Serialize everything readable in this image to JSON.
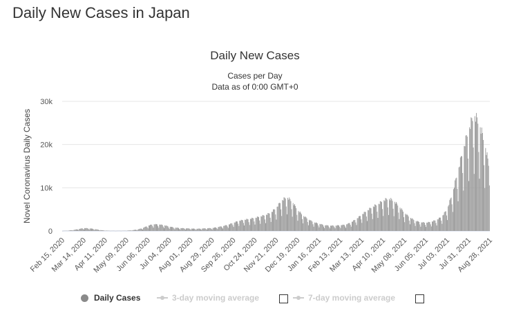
{
  "page": {
    "title": "Daily New Cases in Japan"
  },
  "chart_data": {
    "type": "bar",
    "title": "Daily New Cases",
    "subtitle_lines": [
      "Cases per Day",
      "Data as of 0:00 GMT+0"
    ],
    "ylabel": "Novel Coronavirus Daily Cases",
    "ylim": [
      0,
      30000
    ],
    "yticks": [
      0,
      10000,
      20000,
      30000
    ],
    "ytick_labels": [
      "0",
      "10k",
      "20k",
      "30k"
    ],
    "grid": true,
    "x_start": "2020-02-15",
    "xtick_labels": [
      "Feb 15, 2020",
      "Mar 14, 2020",
      "Apr 11, 2020",
      "May 09, 2020",
      "Jun 06, 2020",
      "Jul 04, 2020",
      "Aug 01, 2020",
      "Aug 29, 2020",
      "Sep 26, 2020",
      "Oct 24, 2020",
      "Nov 21, 2020",
      "Dec 19, 2020",
      "Jan 16, 2021",
      "Feb 13, 2021",
      "Mar 13, 2021",
      "Apr 10, 2021",
      "May 08, 2021",
      "Jun 05, 2021",
      "Jul 03, 2021",
      "Jul 31, 2021",
      "Aug 28, 2021"
    ],
    "series": [
      {
        "name": "Daily Cases",
        "color": "#999999",
        "weekly_values": [
          20,
          60,
          200,
          400,
          600,
          550,
          400,
          200,
          80,
          40,
          30,
          40,
          60,
          150,
          300,
          600,
          1100,
          1400,
          1350,
          1200,
          900,
          700,
          600,
          550,
          500,
          450,
          500,
          550,
          600,
          800,
          1000,
          1300,
          1700,
          2100,
          2300,
          2500,
          2700,
          3000,
          3300,
          3800,
          4800,
          6300,
          7000,
          6000,
          4300,
          3200,
          2400,
          1800,
          1500,
          1200,
          1100,
          1100,
          1200,
          1300,
          1800,
          2500,
          3400,
          4200,
          5000,
          5500,
          6300,
          6700,
          6200,
          5000,
          3700,
          2800,
          2100,
          1800,
          1700,
          1900,
          2300,
          3000,
          4600,
          8000,
          12500,
          17000,
          21000,
          24000,
          22000,
          18000,
          12000
        ]
      },
      {
        "name": "3-day moving average",
        "visible": false
      },
      {
        "name": "7-day moving average",
        "visible": false
      }
    ],
    "legend_position": "bottom"
  },
  "legend": {
    "daily_label": "Daily Cases",
    "avg3_label": "3-day moving average",
    "avg7_label": "7-day moving average"
  }
}
